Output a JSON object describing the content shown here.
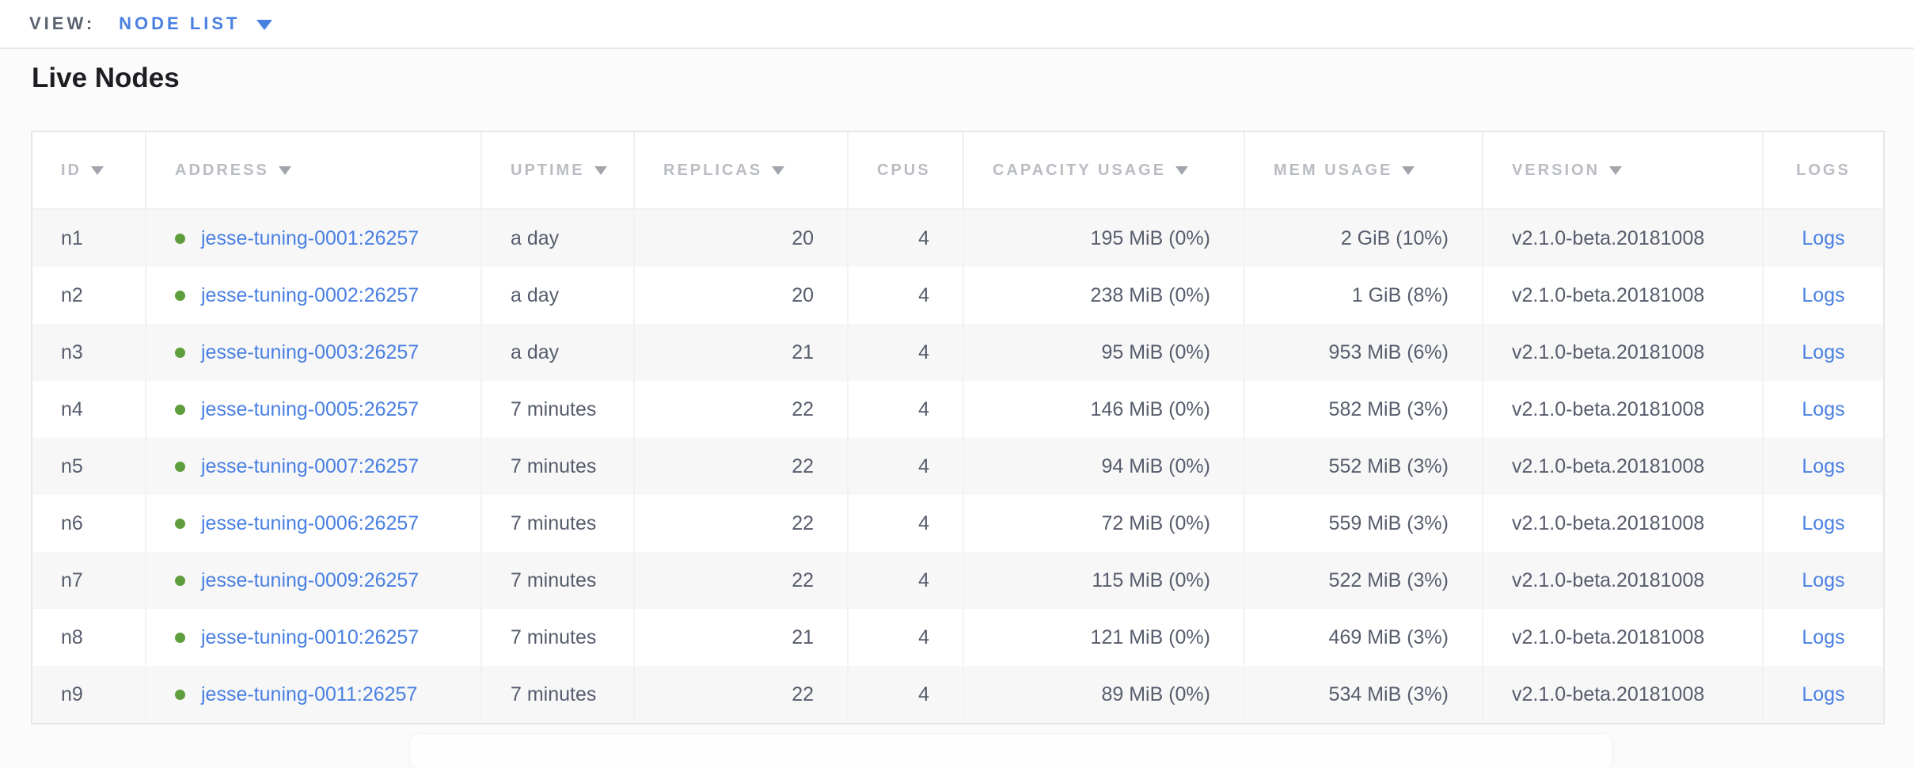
{
  "view_bar": {
    "label": "VIEW:",
    "selected": "NODE LIST"
  },
  "page": {
    "title": "Live Nodes"
  },
  "table": {
    "columns": [
      {
        "key": "id",
        "label": "ID",
        "sortable": true,
        "align": "left",
        "type": "text"
      },
      {
        "key": "address",
        "label": "ADDRESS",
        "sortable": true,
        "align": "left",
        "type": "address"
      },
      {
        "key": "uptime",
        "label": "UPTIME",
        "sortable": true,
        "align": "left",
        "type": "text"
      },
      {
        "key": "replicas",
        "label": "REPLICAS",
        "sortable": true,
        "align": "right",
        "type": "text"
      },
      {
        "key": "cpus",
        "label": "CPUS",
        "sortable": false,
        "align": "right",
        "type": "text"
      },
      {
        "key": "capacity",
        "label": "CAPACITY USAGE",
        "sortable": true,
        "align": "right",
        "type": "text"
      },
      {
        "key": "mem",
        "label": "MEM USAGE",
        "sortable": true,
        "align": "right",
        "type": "text"
      },
      {
        "key": "version",
        "label": "VERSION",
        "sortable": true,
        "align": "left",
        "type": "text"
      },
      {
        "key": "logs",
        "label": "LOGS",
        "sortable": false,
        "align": "center",
        "type": "link"
      }
    ],
    "rows": [
      {
        "id": "n1",
        "address": "jesse-tuning-0001:26257",
        "uptime": "a day",
        "replicas": "20",
        "cpus": "4",
        "capacity": "195 MiB (0%)",
        "mem": "2 GiB (10%)",
        "version": "v2.1.0-beta.20181008",
        "logs": "Logs"
      },
      {
        "id": "n2",
        "address": "jesse-tuning-0002:26257",
        "uptime": "a day",
        "replicas": "20",
        "cpus": "4",
        "capacity": "238 MiB (0%)",
        "mem": "1 GiB (8%)",
        "version": "v2.1.0-beta.20181008",
        "logs": "Logs"
      },
      {
        "id": "n3",
        "address": "jesse-tuning-0003:26257",
        "uptime": "a day",
        "replicas": "21",
        "cpus": "4",
        "capacity": "95 MiB (0%)",
        "mem": "953 MiB (6%)",
        "version": "v2.1.0-beta.20181008",
        "logs": "Logs"
      },
      {
        "id": "n4",
        "address": "jesse-tuning-0005:26257",
        "uptime": "7 minutes",
        "replicas": "22",
        "cpus": "4",
        "capacity": "146 MiB (0%)",
        "mem": "582 MiB (3%)",
        "version": "v2.1.0-beta.20181008",
        "logs": "Logs"
      },
      {
        "id": "n5",
        "address": "jesse-tuning-0007:26257",
        "uptime": "7 minutes",
        "replicas": "22",
        "cpus": "4",
        "capacity": "94 MiB (0%)",
        "mem": "552 MiB (3%)",
        "version": "v2.1.0-beta.20181008",
        "logs": "Logs"
      },
      {
        "id": "n6",
        "address": "jesse-tuning-0006:26257",
        "uptime": "7 minutes",
        "replicas": "22",
        "cpus": "4",
        "capacity": "72 MiB (0%)",
        "mem": "559 MiB (3%)",
        "version": "v2.1.0-beta.20181008",
        "logs": "Logs"
      },
      {
        "id": "n7",
        "address": "jesse-tuning-0009:26257",
        "uptime": "7 minutes",
        "replicas": "22",
        "cpus": "4",
        "capacity": "115 MiB (0%)",
        "mem": "522 MiB (3%)",
        "version": "v2.1.0-beta.20181008",
        "logs": "Logs"
      },
      {
        "id": "n8",
        "address": "jesse-tuning-0010:26257",
        "uptime": "7 minutes",
        "replicas": "21",
        "cpus": "4",
        "capacity": "121 MiB (0%)",
        "mem": "469 MiB (3%)",
        "version": "v2.1.0-beta.20181008",
        "logs": "Logs"
      },
      {
        "id": "n9",
        "address": "jesse-tuning-0011:26257",
        "uptime": "7 minutes",
        "replicas": "22",
        "cpus": "4",
        "capacity": "89 MiB (0%)",
        "mem": "534 MiB (3%)",
        "version": "v2.1.0-beta.20181008",
        "logs": "Logs"
      }
    ]
  },
  "colors": {
    "link_blue": "#4a80e2",
    "live_green": "#5f9e3c",
    "header_gray": "#b9bcc2",
    "body_text": "#575d6d",
    "stripe": "#f7f7f8"
  }
}
